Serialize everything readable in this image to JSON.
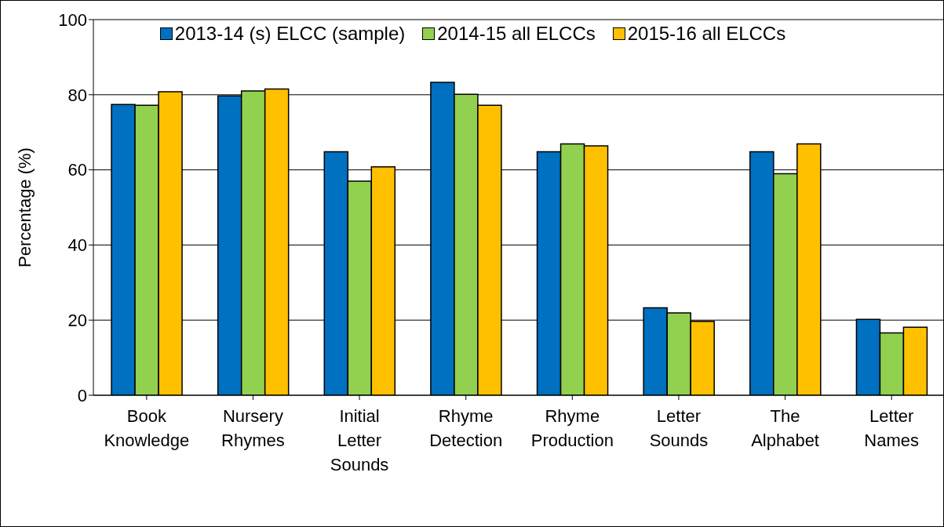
{
  "chart_data": {
    "type": "bar",
    "ylabel": "Percentage (%)",
    "categories": [
      "Book Knowledge",
      "Nursery Rhymes",
      "Initial Letter Sounds",
      "Rhyme Detection",
      "Rhyme Production",
      "Letter Sounds",
      "The Alphabet",
      "Letter Names"
    ],
    "series": [
      {
        "name": "2013-14 (s) ELCC (sample)",
        "color": "#0070c0",
        "values": [
          77.4,
          79.7,
          64.8,
          83.3,
          64.8,
          23.3,
          64.8,
          20.2
        ]
      },
      {
        "name": "2014-15 all ELCCs",
        "color": "#92d050",
        "values": [
          77.2,
          81.0,
          57.0,
          80.1,
          66.9,
          21.9,
          59.0,
          16.6
        ]
      },
      {
        "name": "2015-16 all ELCCs",
        "color": "#ffc000",
        "values": [
          80.8,
          81.5,
          60.8,
          77.2,
          66.4,
          19.7,
          66.9,
          18.1
        ]
      }
    ],
    "ylim": [
      0,
      100
    ],
    "yticks": [
      0,
      20,
      40,
      60,
      80,
      100
    ],
    "grid": "y",
    "legend": "top"
  }
}
